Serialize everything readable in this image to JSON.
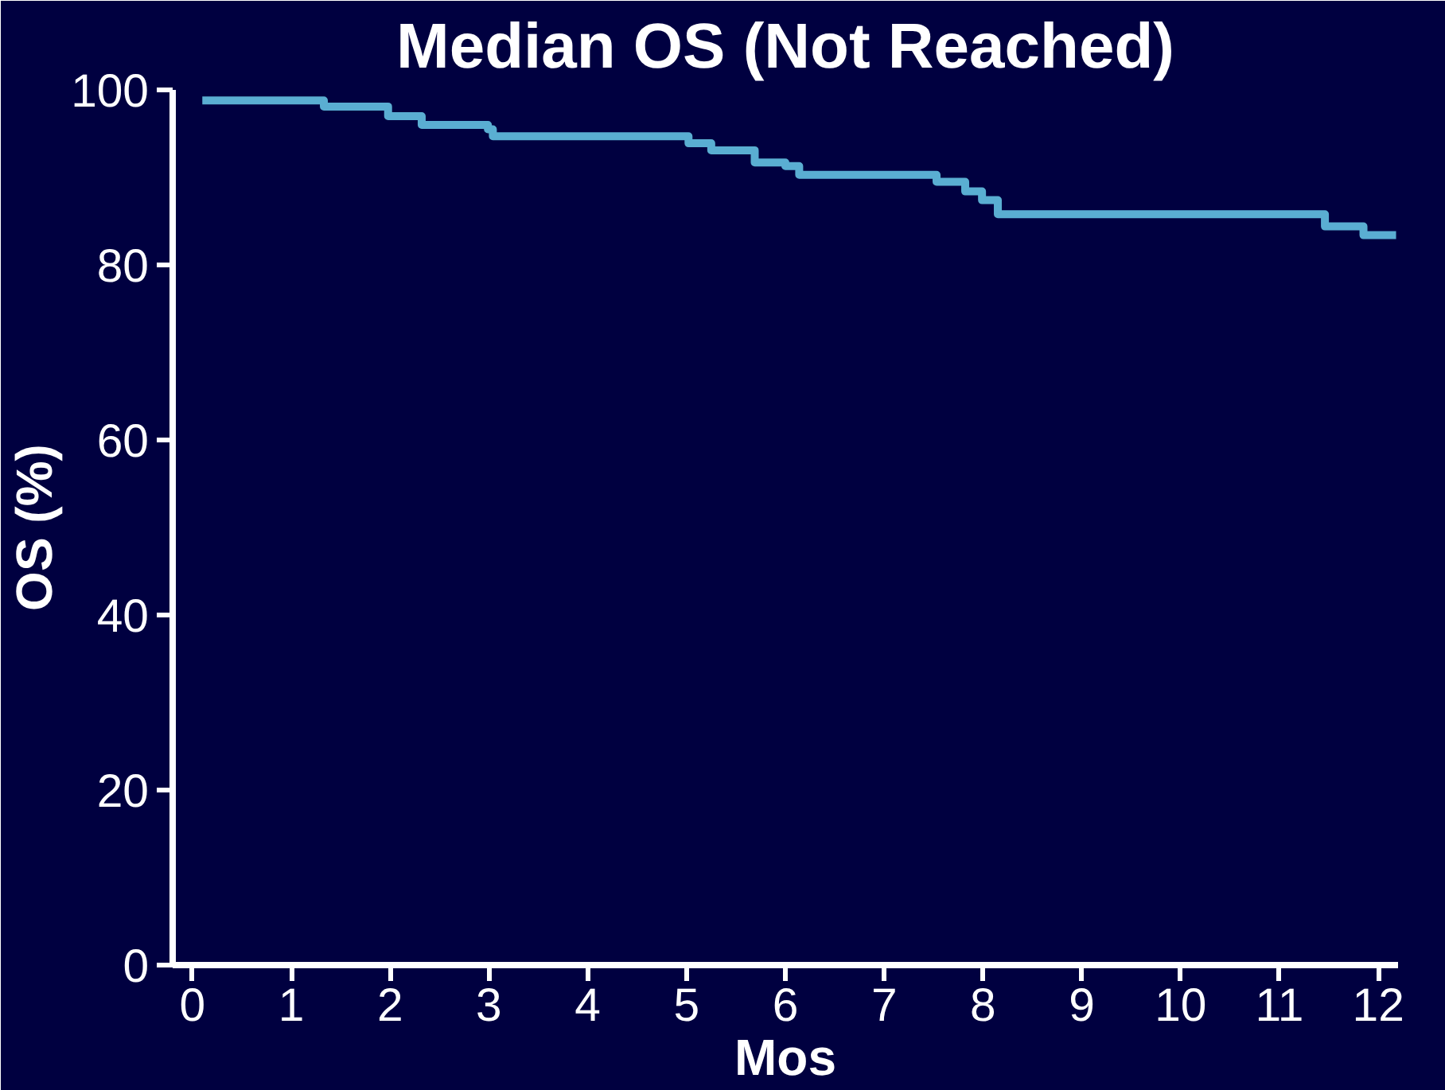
{
  "chart_data": {
    "type": "step",
    "title": "Median OS (Not Reached)",
    "xlabel": "Mos",
    "ylabel": "OS (%)",
    "x": [
      0.1,
      1.33,
      1.98,
      2.32,
      2.99,
      3.04,
      5.02,
      5.25,
      5.69,
      6.0,
      6.14,
      7.53,
      7.82,
      7.99,
      8.15,
      11.46,
      11.85,
      12.18
    ],
    "series": [
      {
        "color": "#5aaed2",
        "values": [
          98.8,
          98.1,
          97.0,
          96.0,
          95.5,
          94.7,
          93.9,
          93.1,
          91.7,
          91.3,
          90.3,
          89.5,
          88.4,
          87.4,
          85.8,
          84.4,
          83.4,
          83.4
        ]
      }
    ],
    "xlim": [
      -0.2,
      12.2
    ],
    "ylim": [
      0,
      100
    ],
    "xticks": [
      0,
      1,
      2,
      3,
      4,
      5,
      6,
      7,
      8,
      9,
      10,
      11,
      12
    ],
    "yticks": [
      0,
      20,
      40,
      60,
      80,
      100
    ],
    "grid": false
  }
}
